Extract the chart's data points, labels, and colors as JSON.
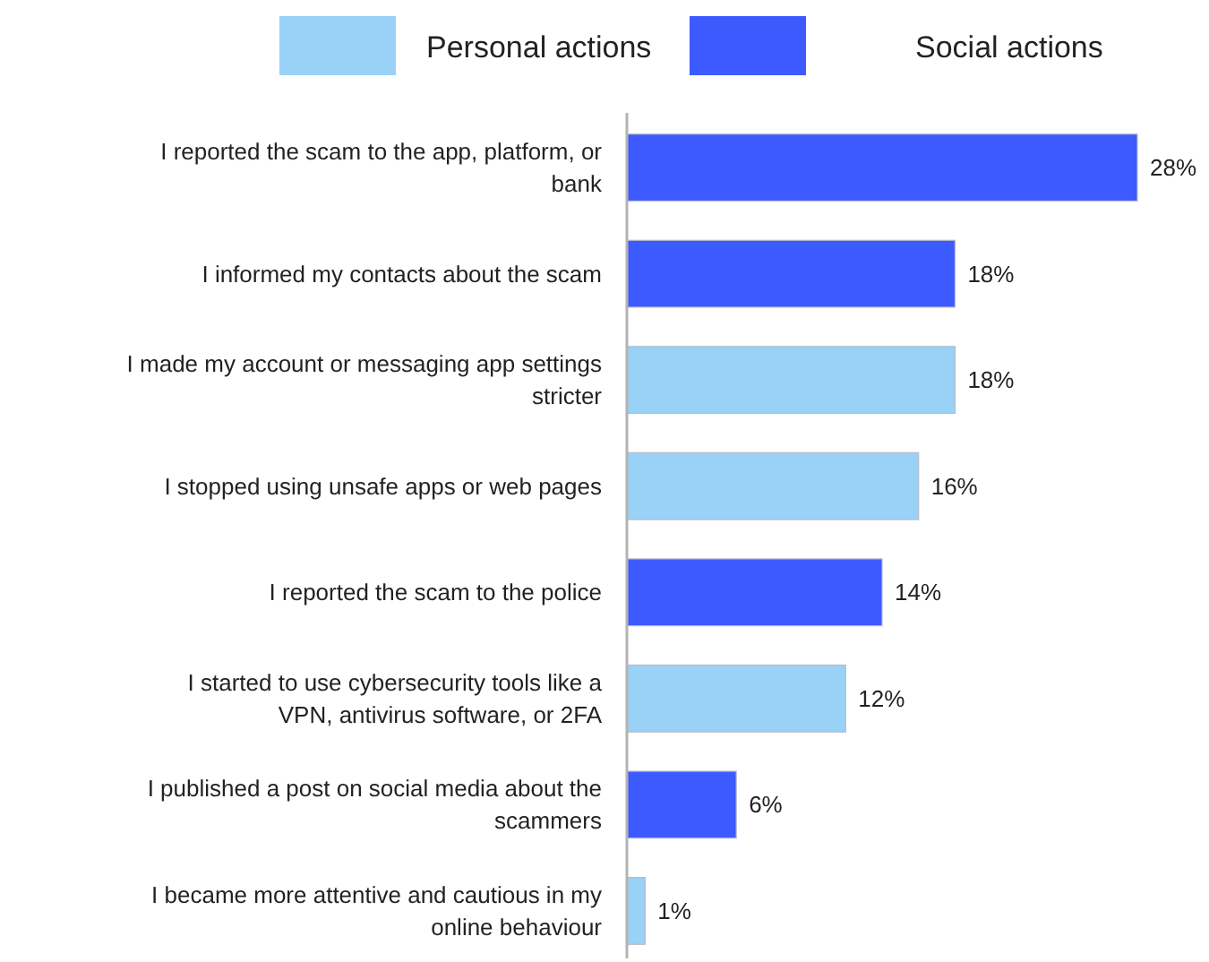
{
  "chart_data": {
    "type": "bar",
    "orientation": "horizontal",
    "stacked": true,
    "categories": [
      "I reported the scam to the app, platform, or bank",
      "I informed my contacts about the scam",
      "I  made my account or messaging app settings stricter",
      "I stopped using unsafe apps or web pages",
      "I reported the scam to the police",
      "I started to use cybersecurity tools like a VPN, antivirus software, or 2FA",
      "I published a post on social media about the scammers",
      "I became more attentive and cautious in my online behaviour"
    ],
    "series": [
      {
        "name": "Personal actions",
        "color": "#99d1f7",
        "values": [
          null,
          null,
          18,
          16,
          null,
          12,
          null,
          1
        ],
        "value_labels": [
          null,
          null,
          "18%",
          "16%",
          null,
          "12%",
          null,
          "1%"
        ]
      },
      {
        "name": "Social actions",
        "color": "#3d5afe",
        "values": [
          28,
          18,
          null,
          null,
          14,
          null,
          6,
          null
        ],
        "value_labels": [
          "28%",
          "18%",
          null,
          null,
          "14%",
          null,
          "6%",
          null
        ]
      }
    ],
    "legend": "top"
  }
}
